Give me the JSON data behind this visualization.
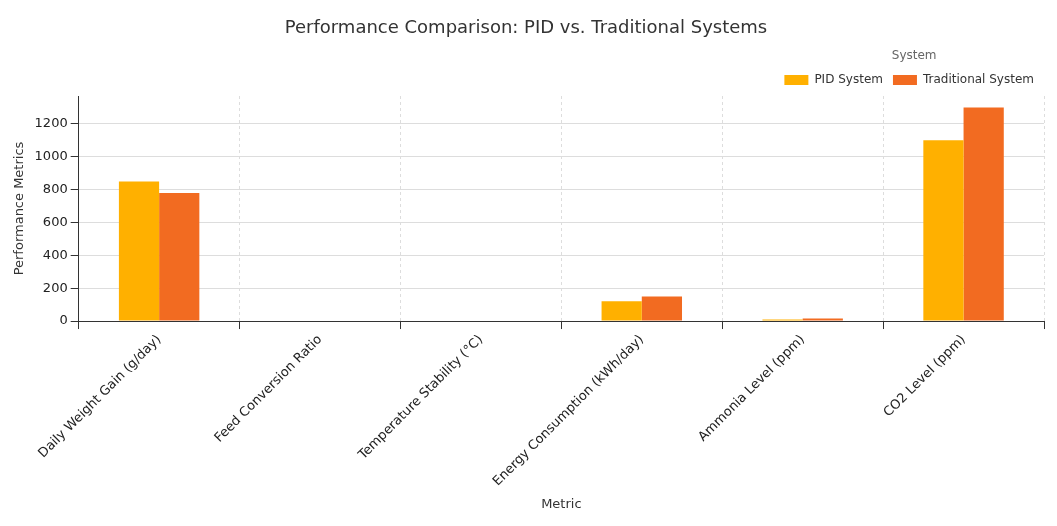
{
  "chart_data": {
    "type": "bar",
    "title": "Performance Comparison: PID vs. Traditional Systems",
    "xlabel": "Metric",
    "ylabel": "Performance Metrics",
    "legend_title": "System",
    "categories": [
      "Daily Weight Gain (g/day)",
      "Feed Conversion Ratio",
      "Temperature Stability (°C)",
      "Energy Consumption (kWh/day)",
      "Ammonia Level (ppm)",
      "CO2 Level (ppm)"
    ],
    "series": [
      {
        "name": "PID System",
        "color": "#ffb000",
        "values": [
          850,
          null,
          null,
          120,
          10,
          1100
        ]
      },
      {
        "name": "Traditional System",
        "color": "#f26b21",
        "values": [
          780,
          null,
          null,
          150,
          15,
          1300
        ]
      }
    ],
    "ylim": [
      0,
      1370
    ],
    "yticks": [
      0,
      200,
      400,
      600,
      800,
      1000,
      1200
    ],
    "grid": true,
    "legend": "top right"
  }
}
